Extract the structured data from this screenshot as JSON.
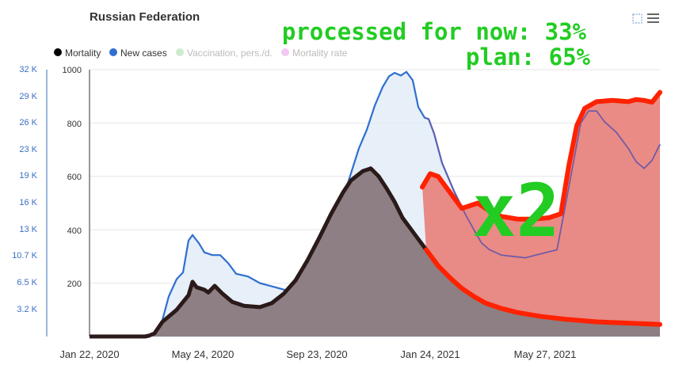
{
  "chart_data": {
    "type": "area",
    "title": "Russian Federation",
    "legend": [
      "Mortality",
      "New cases",
      "Vaccination, pers./d.",
      "Mortality rate"
    ],
    "legend_placement": "top-left",
    "x_ticks": [
      "Jan 22, 2020",
      "May 24, 2020",
      "Sep 23, 2020",
      "Jan 24, 2021",
      "May 27, 2021"
    ],
    "y_left_ticks": [
      "32 K",
      "29 K",
      "26 K",
      "23 K",
      "19 K",
      "16 K",
      "13 K",
      "10.7 K",
      "6.5 K",
      "3.2 K"
    ],
    "y_right_ticks": [
      "1000",
      "800",
      "600",
      "400",
      "200"
    ],
    "y_right_range": [
      0,
      1000
    ],
    "series": [
      {
        "name": "Mortality",
        "color": "#2b1a1a",
        "points": [
          [
            0,
            0
          ],
          [
            70,
            0
          ],
          [
            75,
            3
          ],
          [
            82,
            12
          ],
          [
            92,
            55
          ],
          [
            110,
            100
          ],
          [
            125,
            155
          ],
          [
            130,
            205
          ],
          [
            135,
            185
          ],
          [
            145,
            175
          ],
          [
            150,
            165
          ],
          [
            158,
            190
          ],
          [
            168,
            160
          ],
          [
            180,
            130
          ],
          [
            195,
            115
          ],
          [
            215,
            110
          ],
          [
            230,
            125
          ],
          [
            245,
            160
          ],
          [
            260,
            210
          ],
          [
            275,
            285
          ],
          [
            290,
            370
          ],
          [
            305,
            460
          ],
          [
            320,
            540
          ],
          [
            330,
            585
          ],
          [
            345,
            620
          ],
          [
            355,
            630
          ],
          [
            365,
            600
          ],
          [
            375,
            555
          ],
          [
            385,
            505
          ],
          [
            395,
            445
          ],
          [
            410,
            385
          ],
          [
            425,
            325
          ],
          [
            440,
            265
          ],
          [
            455,
            220
          ],
          [
            470,
            180
          ],
          [
            485,
            150
          ],
          [
            500,
            125
          ],
          [
            520,
            105
          ],
          [
            540,
            90
          ],
          [
            570,
            75
          ],
          [
            600,
            65
          ],
          [
            640,
            55
          ],
          [
            680,
            50
          ],
          [
            720,
            45
          ]
        ]
      },
      {
        "name": "New cases",
        "color": "#2f6fd0",
        "points": [
          [
            0,
            0
          ],
          [
            70,
            0
          ],
          [
            80,
            5
          ],
          [
            90,
            40
          ],
          [
            100,
            150
          ],
          [
            110,
            215
          ],
          [
            118,
            240
          ],
          [
            125,
            360
          ],
          [
            130,
            380
          ],
          [
            138,
            350
          ],
          [
            145,
            315
          ],
          [
            155,
            305
          ],
          [
            165,
            305
          ],
          [
            175,
            275
          ],
          [
            185,
            235
          ],
          [
            200,
            225
          ],
          [
            215,
            200
          ],
          [
            240,
            180
          ],
          [
            255,
            168
          ],
          [
            265,
            170
          ],
          [
            280,
            185
          ],
          [
            295,
            225
          ],
          [
            310,
            365
          ],
          [
            325,
            565
          ],
          [
            340,
            705
          ],
          [
            350,
            775
          ],
          [
            360,
            865
          ],
          [
            370,
            935
          ],
          [
            378,
            975
          ],
          [
            385,
            988
          ],
          [
            393,
            978
          ],
          [
            400,
            992
          ],
          [
            408,
            960
          ],
          [
            415,
            860
          ],
          [
            423,
            820
          ],
          [
            428,
            815
          ],
          [
            435,
            760
          ],
          [
            445,
            650
          ],
          [
            460,
            545
          ],
          [
            475,
            455
          ],
          [
            488,
            385
          ],
          [
            495,
            350
          ],
          [
            505,
            325
          ],
          [
            520,
            305
          ],
          [
            535,
            300
          ],
          [
            550,
            295
          ],
          [
            570,
            310
          ],
          [
            590,
            325
          ],
          [
            600,
            480
          ],
          [
            620,
            800
          ],
          [
            630,
            845
          ],
          [
            640,
            845
          ],
          [
            650,
            805
          ],
          [
            665,
            765
          ],
          [
            680,
            705
          ],
          [
            690,
            655
          ],
          [
            700,
            630
          ],
          [
            710,
            660
          ],
          [
            720,
            720
          ]
        ]
      }
    ],
    "overlay": {
      "x2_label": "x2",
      "processed_text": "processed for now: 33%",
      "plan_text": "plan: 65%",
      "processed_fraction": 0.33,
      "plan_fraction": 0.65,
      "upper_estimate_points": [
        [
          420,
          560
        ],
        [
          430,
          610
        ],
        [
          440,
          600
        ],
        [
          450,
          560
        ],
        [
          460,
          520
        ],
        [
          470,
          480
        ],
        [
          480,
          490
        ],
        [
          490,
          500
        ],
        [
          500,
          480
        ],
        [
          510,
          460
        ],
        [
          520,
          450
        ],
        [
          530,
          445
        ],
        [
          540,
          440
        ],
        [
          560,
          440
        ],
        [
          580,
          445
        ],
        [
          595,
          460
        ],
        [
          605,
          640
        ],
        [
          615,
          790
        ],
        [
          625,
          855
        ],
        [
          640,
          880
        ],
        [
          660,
          885
        ],
        [
          680,
          880
        ],
        [
          690,
          888
        ],
        [
          700,
          885
        ],
        [
          710,
          878
        ],
        [
          720,
          915
        ]
      ]
    }
  }
}
